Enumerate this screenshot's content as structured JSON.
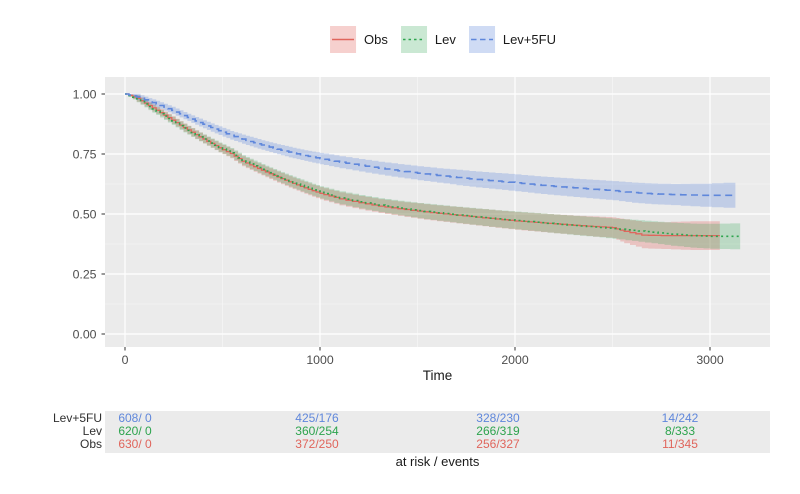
{
  "colors": {
    "background": "#FFFFFF",
    "panel": "#EBEBEB",
    "grid_major": "#FFFFFF",
    "grid_minor": "#FFFFFF",
    "axis_text": "#4D4D4D",
    "tick_mark": "#333333",
    "text": "#1A1A1A",
    "obs_line": "#E0655C",
    "obs_fill": "rgba(224,101,92,0.30)",
    "lev_line": "#2DA44E",
    "lev_fill": "rgba(45,164,78,0.25)",
    "lev5fu_line": "#5F87DB",
    "lev5fu_fill": "rgba(95,135,219,0.30)"
  },
  "legend": {
    "items": [
      {
        "label": "Obs",
        "series": "obs",
        "linetype": "solid"
      },
      {
        "label": "Lev",
        "series": "lev",
        "linetype": "dotted"
      },
      {
        "label": "Lev+5FU",
        "series": "lev5fu",
        "linetype": "dashed"
      }
    ]
  },
  "chart_data": {
    "type": "line",
    "subtype": "kaplan-meier-step-with-confidence-bands",
    "title": "",
    "xlabel": "Time",
    "ylabel": "",
    "xlim": [
      -100,
      3310
    ],
    "ylim": [
      -0.05,
      1.07
    ],
    "x_ticks": [
      0,
      1000,
      2000,
      3000
    ],
    "y_ticks": [
      0,
      0.25,
      0.5,
      0.75,
      1
    ],
    "y_tick_labels": [
      "0.00",
      "0.25",
      "0.50",
      "0.75",
      "1.00"
    ],
    "grid": true,
    "legend_position": "top",
    "point_format": [
      "time",
      "survival",
      "ci_half_width"
    ],
    "series": [
      {
        "name": "Obs",
        "color_key": "obs",
        "linetype": "solid",
        "points": [
          [
            0,
            1,
            0
          ],
          [
            60,
            0.982,
            0.014
          ],
          [
            120,
            0.952,
            0.015
          ],
          [
            180,
            0.922,
            0.015
          ],
          [
            240,
            0.891,
            0.016
          ],
          [
            300,
            0.86,
            0.017
          ],
          [
            360,
            0.831,
            0.018
          ],
          [
            420,
            0.803,
            0.018
          ],
          [
            480,
            0.776,
            0.019
          ],
          [
            540,
            0.752,
            0.02
          ],
          [
            600,
            0.72,
            0.021
          ],
          [
            660,
            0.697,
            0.021
          ],
          [
            720,
            0.675,
            0.022
          ],
          [
            780,
            0.654,
            0.023
          ],
          [
            840,
            0.634,
            0.024
          ],
          [
            900,
            0.615,
            0.024
          ],
          [
            960,
            0.597,
            0.025
          ],
          [
            1020,
            0.581,
            0.026
          ],
          [
            1100,
            0.563,
            0.027
          ],
          [
            1200,
            0.547,
            0.028
          ],
          [
            1300,
            0.533,
            0.029
          ],
          [
            1400,
            0.522,
            0.03
          ],
          [
            1500,
            0.512,
            0.032
          ],
          [
            1600,
            0.503,
            0.033
          ],
          [
            1700,
            0.495,
            0.034
          ],
          [
            1800,
            0.487,
            0.035
          ],
          [
            1900,
            0.479,
            0.036
          ],
          [
            2000,
            0.471,
            0.037
          ],
          [
            2100,
            0.465,
            0.038
          ],
          [
            2200,
            0.459,
            0.039
          ],
          [
            2300,
            0.453,
            0.04
          ],
          [
            2400,
            0.448,
            0.042
          ],
          [
            2500,
            0.443,
            0.043
          ],
          [
            2560,
            0.428,
            0.05
          ],
          [
            2650,
            0.412,
            0.055
          ],
          [
            2750,
            0.41,
            0.056
          ],
          [
            2900,
            0.41,
            0.06
          ],
          [
            3050,
            0.41,
            0.06
          ]
        ]
      },
      {
        "name": "Lev",
        "color_key": "lev",
        "linetype": "dotted",
        "points": [
          [
            0,
            1,
            0
          ],
          [
            60,
            0.98,
            0.014
          ],
          [
            120,
            0.948,
            0.015
          ],
          [
            180,
            0.918,
            0.016
          ],
          [
            240,
            0.888,
            0.017
          ],
          [
            300,
            0.858,
            0.018
          ],
          [
            360,
            0.83,
            0.018
          ],
          [
            420,
            0.804,
            0.019
          ],
          [
            480,
            0.778,
            0.02
          ],
          [
            540,
            0.755,
            0.02
          ],
          [
            600,
            0.724,
            0.021
          ],
          [
            660,
            0.701,
            0.022
          ],
          [
            720,
            0.679,
            0.022
          ],
          [
            780,
            0.658,
            0.023
          ],
          [
            840,
            0.638,
            0.024
          ],
          [
            900,
            0.619,
            0.025
          ],
          [
            960,
            0.601,
            0.025
          ],
          [
            1020,
            0.585,
            0.026
          ],
          [
            1100,
            0.567,
            0.027
          ],
          [
            1200,
            0.551,
            0.028
          ],
          [
            1300,
            0.537,
            0.029
          ],
          [
            1400,
            0.525,
            0.03
          ],
          [
            1500,
            0.514,
            0.032
          ],
          [
            1600,
            0.505,
            0.033
          ],
          [
            1700,
            0.496,
            0.034
          ],
          [
            1800,
            0.488,
            0.035
          ],
          [
            1900,
            0.48,
            0.036
          ],
          [
            2000,
            0.473,
            0.037
          ],
          [
            2100,
            0.466,
            0.038
          ],
          [
            2200,
            0.459,
            0.039
          ],
          [
            2300,
            0.452,
            0.04
          ],
          [
            2400,
            0.446,
            0.041
          ],
          [
            2500,
            0.439,
            0.042
          ],
          [
            2600,
            0.432,
            0.044
          ],
          [
            2700,
            0.424,
            0.046
          ],
          [
            2800,
            0.416,
            0.048
          ],
          [
            2900,
            0.41,
            0.05
          ],
          [
            3000,
            0.407,
            0.052
          ],
          [
            3155,
            0.407,
            0.055
          ]
        ]
      },
      {
        "name": "Lev+5FU",
        "color_key": "lev5fu",
        "linetype": "dashed",
        "points": [
          [
            0,
            1,
            0
          ],
          [
            60,
            0.988,
            0.013
          ],
          [
            120,
            0.97,
            0.013
          ],
          [
            180,
            0.952,
            0.014
          ],
          [
            240,
            0.932,
            0.015
          ],
          [
            300,
            0.91,
            0.015
          ],
          [
            360,
            0.888,
            0.016
          ],
          [
            420,
            0.867,
            0.017
          ],
          [
            480,
            0.847,
            0.018
          ],
          [
            540,
            0.828,
            0.018
          ],
          [
            600,
            0.812,
            0.019
          ],
          [
            660,
            0.797,
            0.02
          ],
          [
            720,
            0.783,
            0.02
          ],
          [
            780,
            0.77,
            0.021
          ],
          [
            840,
            0.758,
            0.022
          ],
          [
            900,
            0.747,
            0.022
          ],
          [
            960,
            0.737,
            0.023
          ],
          [
            1020,
            0.728,
            0.024
          ],
          [
            1100,
            0.716,
            0.025
          ],
          [
            1200,
            0.703,
            0.026
          ],
          [
            1300,
            0.691,
            0.027
          ],
          [
            1400,
            0.68,
            0.028
          ],
          [
            1500,
            0.67,
            0.029
          ],
          [
            1600,
            0.661,
            0.03
          ],
          [
            1700,
            0.652,
            0.032
          ],
          [
            1800,
            0.644,
            0.033
          ],
          [
            1900,
            0.637,
            0.034
          ],
          [
            2000,
            0.63,
            0.035
          ],
          [
            2100,
            0.622,
            0.036
          ],
          [
            2200,
            0.615,
            0.037
          ],
          [
            2300,
            0.609,
            0.038
          ],
          [
            2400,
            0.603,
            0.039
          ],
          [
            2500,
            0.597,
            0.04
          ],
          [
            2600,
            0.589,
            0.042
          ],
          [
            2700,
            0.584,
            0.043
          ],
          [
            2800,
            0.581,
            0.044
          ],
          [
            2950,
            0.578,
            0.048
          ],
          [
            3130,
            0.578,
            0.054
          ]
        ]
      }
    ]
  },
  "risk_table": {
    "times": [
      0,
      1000,
      2000,
      3000
    ],
    "rows": [
      {
        "label": "Lev+5FU",
        "color_key": "lev5fu",
        "values": [
          "608/ 0",
          "425/176",
          "328/230",
          "14/242"
        ]
      },
      {
        "label": "Lev",
        "color_key": "lev",
        "values": [
          "620/ 0",
          "360/254",
          "266/319",
          "8/333"
        ]
      },
      {
        "label": "Obs",
        "color_key": "obs",
        "values": [
          "630/ 0",
          "372/250",
          "256/327",
          "11/345"
        ]
      }
    ],
    "caption": "at risk / events"
  }
}
